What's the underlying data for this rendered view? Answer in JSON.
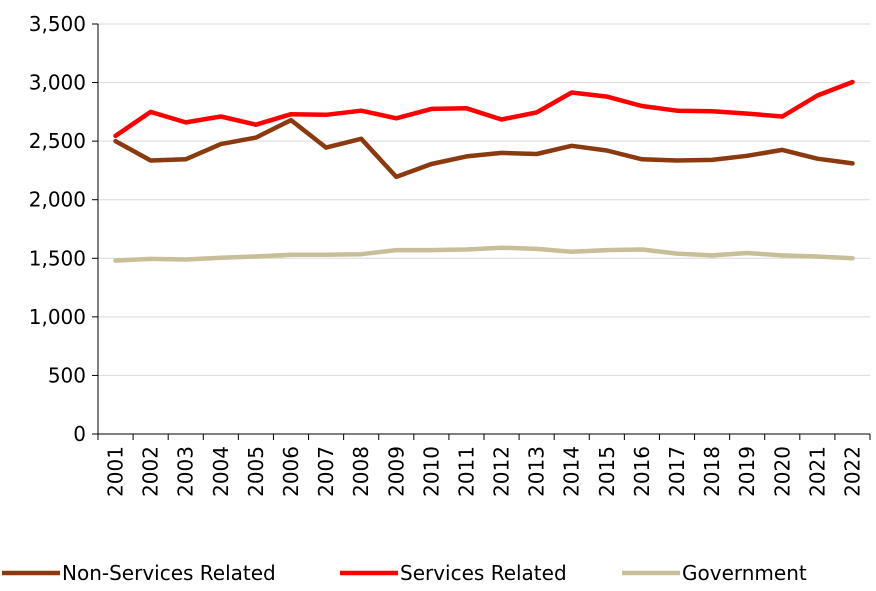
{
  "chart_data": {
    "type": "line",
    "x": [
      "2001",
      "2002",
      "2003",
      "2004",
      "2005",
      "2006",
      "2007",
      "2008",
      "2009",
      "2010",
      "2011",
      "2012",
      "2013",
      "2014",
      "2015",
      "2016",
      "2017",
      "2018",
      "2019",
      "2020",
      "2021",
      "2022"
    ],
    "ylim": [
      0,
      3500
    ],
    "yticks": [
      0,
      500,
      1000,
      1500,
      2000,
      2500,
      3000,
      3500
    ],
    "ytick_labels": [
      "0",
      "500",
      "1,000",
      "1,500",
      "2,000",
      "2,500",
      "3,000",
      "3,500"
    ],
    "grid": true,
    "legend_position": "bottom",
    "series": [
      {
        "name": "Non-Services Related",
        "color": "#8B3A0F",
        "values": [
          2500,
          2335,
          2345,
          2475,
          2530,
          2680,
          2445,
          2520,
          2195,
          2305,
          2370,
          2400,
          2390,
          2460,
          2420,
          2345,
          2335,
          2340,
          2375,
          2425,
          2350,
          2310
        ]
      },
      {
        "name": "Services Related",
        "color": "#FF0000",
        "values": [
          2545,
          2750,
          2660,
          2710,
          2640,
          2730,
          2725,
          2760,
          2695,
          2775,
          2780,
          2685,
          2745,
          2915,
          2880,
          2800,
          2760,
          2755,
          2735,
          2710,
          2890,
          3005
        ]
      },
      {
        "name": "Government",
        "color": "#C8BE98",
        "values": [
          1480,
          1495,
          1490,
          1505,
          1515,
          1530,
          1530,
          1535,
          1570,
          1570,
          1575,
          1590,
          1580,
          1555,
          1570,
          1575,
          1540,
          1525,
          1545,
          1525,
          1515,
          1500
        ]
      }
    ]
  }
}
